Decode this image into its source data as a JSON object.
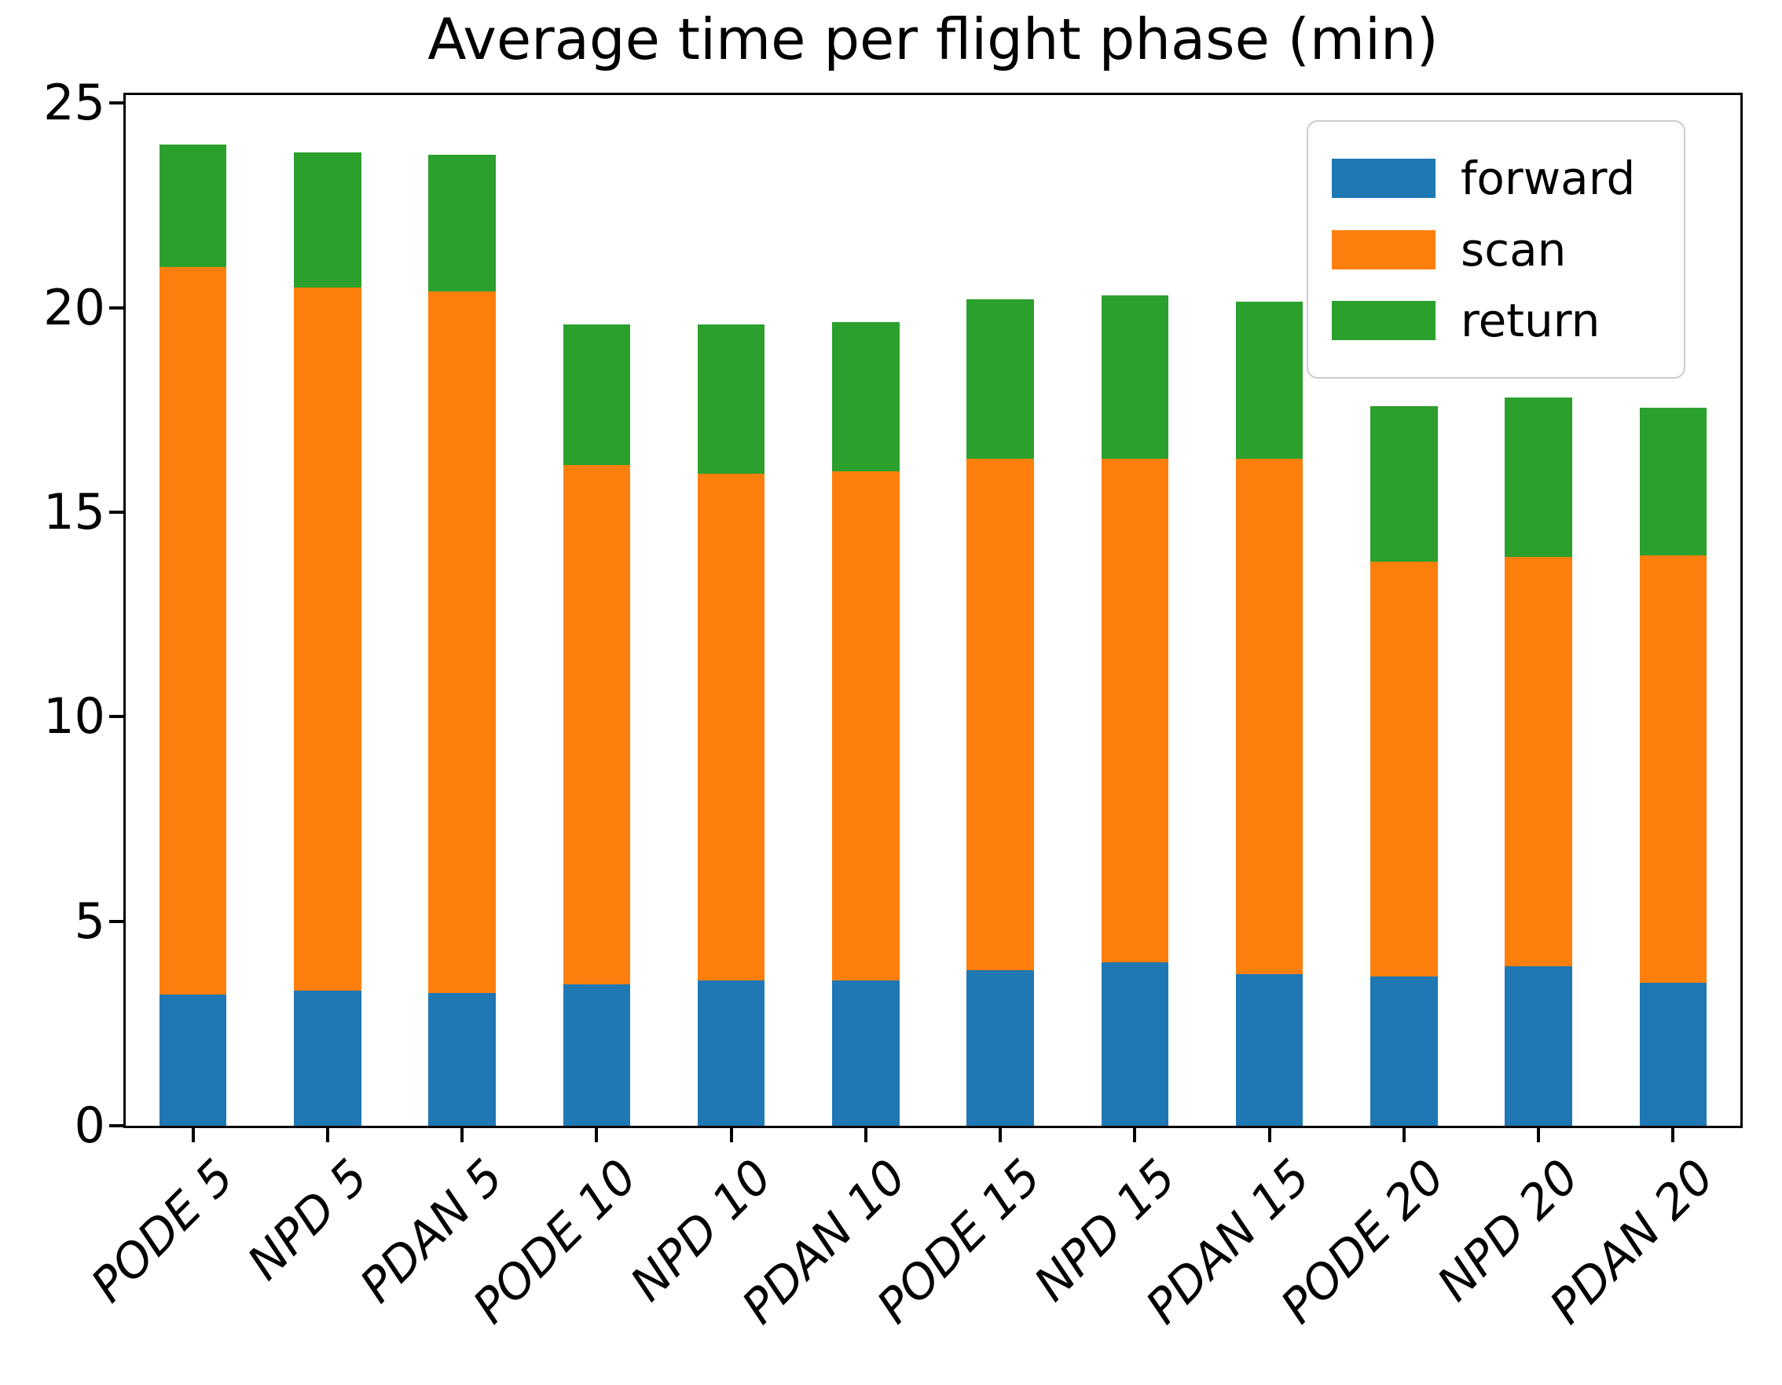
{
  "chart_data": {
    "type": "bar",
    "stacked": true,
    "title": "Average time per flight phase (min)",
    "xlabel": "",
    "ylabel": "",
    "categories": [
      "PODE 5",
      "NPD 5",
      "PDAN 5",
      "PODE 10",
      "NPD 10",
      "PDAN 10",
      "PODE 15",
      "NPD 15",
      "PDAN 15",
      "PODE 20",
      "NPD 20",
      "PDAN 20"
    ],
    "series": [
      {
        "name": "forward",
        "color": "#1f77b4",
        "values": [
          3.2,
          3.3,
          3.25,
          3.45,
          3.55,
          3.55,
          3.8,
          4.0,
          3.7,
          3.65,
          3.9,
          3.5
        ]
      },
      {
        "name": "scan",
        "color": "#ff7f0e",
        "values": [
          17.8,
          17.2,
          17.15,
          12.7,
          12.4,
          12.45,
          12.5,
          12.3,
          12.6,
          10.15,
          10.0,
          10.45
        ]
      },
      {
        "name": "return",
        "color": "#2ca02c",
        "values": [
          3.0,
          3.3,
          3.35,
          3.45,
          3.65,
          3.65,
          3.9,
          4.0,
          3.85,
          3.8,
          3.9,
          3.6
        ]
      }
    ],
    "totals": [
      24.0,
      23.8,
      23.75,
      19.6,
      19.6,
      19.65,
      20.2,
      20.3,
      20.15,
      17.6,
      17.8,
      17.55
    ],
    "ylim": [
      0,
      25.2
    ],
    "yticks": [
      0,
      5,
      10,
      15,
      20,
      25
    ],
    "grid": false,
    "legend_position": "upper right"
  }
}
